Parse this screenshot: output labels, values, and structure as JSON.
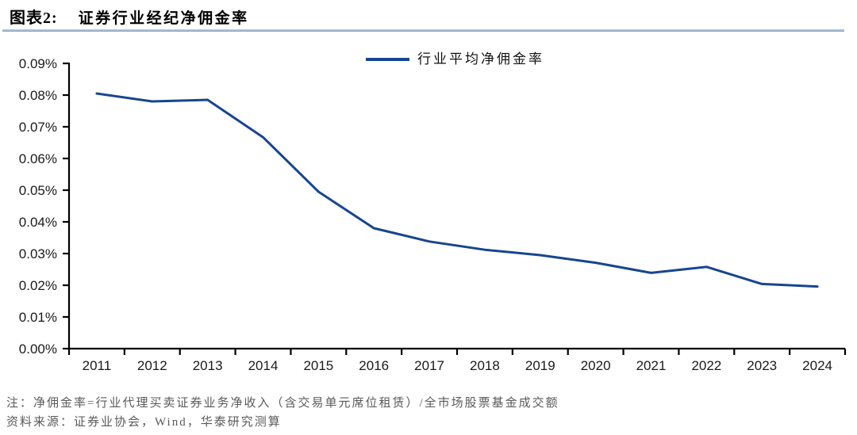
{
  "header": {
    "label": "图表2:",
    "title": "证券行业经纪净佣金率"
  },
  "legend": {
    "label": "行业平均净佣金率"
  },
  "chart_data": {
    "type": "line",
    "title": "证券行业经纪净佣金率",
    "categories": [
      "2011",
      "2012",
      "2013",
      "2014",
      "2015",
      "2016",
      "2017",
      "2018",
      "2019",
      "2020",
      "2021",
      "2022",
      "2023",
      "2024"
    ],
    "series": [
      {
        "name": "行业平均净佣金率",
        "values": [
          0.0805,
          0.078,
          0.0785,
          0.0667,
          0.0495,
          0.038,
          0.0338,
          0.0312,
          0.0295,
          0.0271,
          0.0239,
          0.0258,
          0.0204,
          0.0196
        ]
      }
    ],
    "unit": "%",
    "ylim": [
      0,
      0.09
    ],
    "y_tick_labels": [
      "0.09%",
      "0.08%",
      "0.07%",
      "0.06%",
      "0.05%",
      "0.04%",
      "0.03%",
      "0.02%",
      "0.01%",
      "0.00%"
    ],
    "grid": "off",
    "legend_position": "top-center",
    "line_color": "#17458f",
    "axis_color": "#000000"
  },
  "footer": {
    "note": "注：净佣金率=行业代理买卖证券业务净收入（含交易单元席位租赁）/全市场股票基金成交额",
    "source": "资料来源：证券业协会，Wind，华泰研究测算"
  }
}
